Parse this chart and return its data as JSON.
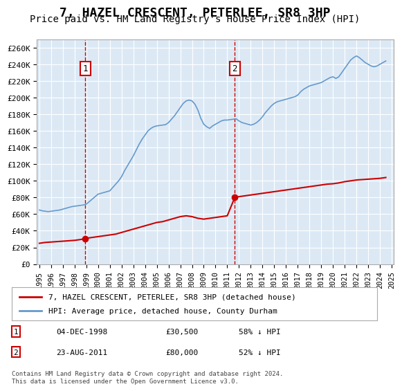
{
  "title": "7, HAZEL CRESCENT, PETERLEE, SR8 3HP",
  "subtitle": "Price paid vs. HM Land Registry's House Price Index (HPI)",
  "title_fontsize": 13,
  "subtitle_fontsize": 10,
  "ylabel": "",
  "xlabel": "",
  "ylim": [
    0,
    270000
  ],
  "yticks": [
    0,
    20000,
    40000,
    60000,
    80000,
    100000,
    120000,
    140000,
    160000,
    180000,
    200000,
    220000,
    240000,
    260000
  ],
  "ytick_labels": [
    "£0",
    "£20K",
    "£40K",
    "£60K",
    "£80K",
    "£100K",
    "£120K",
    "£140K",
    "£160K",
    "£180K",
    "£200K",
    "£220K",
    "£240K",
    "£260K"
  ],
  "bg_color": "#dce9f5",
  "plot_bg": "#dce9f5",
  "fig_bg": "#ffffff",
  "legend_label_red": "7, HAZEL CRESCENT, PETERLEE, SR8 3HP (detached house)",
  "legend_label_blue": "HPI: Average price, detached house, County Durham",
  "footnote": "Contains HM Land Registry data © Crown copyright and database right 2024.\nThis data is licensed under the Open Government Licence v3.0.",
  "annotation1_label": "1",
  "annotation1_date": "04-DEC-1998",
  "annotation1_price": "£30,500",
  "annotation1_hpi": "58% ↓ HPI",
  "annotation1_year": 1998.92,
  "annotation1_value": 30500,
  "annotation2_label": "2",
  "annotation2_date": "23-AUG-2011",
  "annotation2_price": "£80,000",
  "annotation2_hpi": "52% ↓ HPI",
  "annotation2_year": 2011.64,
  "annotation2_value": 80000,
  "hpi_data_x": [
    1995.0,
    1995.25,
    1995.5,
    1995.75,
    1996.0,
    1996.25,
    1996.5,
    1996.75,
    1997.0,
    1997.25,
    1997.5,
    1997.75,
    1998.0,
    1998.25,
    1998.5,
    1998.75,
    1999.0,
    1999.25,
    1999.5,
    1999.75,
    2000.0,
    2000.25,
    2000.5,
    2000.75,
    2001.0,
    2001.25,
    2001.5,
    2001.75,
    2002.0,
    2002.25,
    2002.5,
    2002.75,
    2003.0,
    2003.25,
    2003.5,
    2003.75,
    2004.0,
    2004.25,
    2004.5,
    2004.75,
    2005.0,
    2005.25,
    2005.5,
    2005.75,
    2006.0,
    2006.25,
    2006.5,
    2006.75,
    2007.0,
    2007.25,
    2007.5,
    2007.75,
    2008.0,
    2008.25,
    2008.5,
    2008.75,
    2009.0,
    2009.25,
    2009.5,
    2009.75,
    2010.0,
    2010.25,
    2010.5,
    2010.75,
    2011.0,
    2011.25,
    2011.5,
    2011.75,
    2012.0,
    2012.25,
    2012.5,
    2012.75,
    2013.0,
    2013.25,
    2013.5,
    2013.75,
    2014.0,
    2014.25,
    2014.5,
    2014.75,
    2015.0,
    2015.25,
    2015.5,
    2015.75,
    2016.0,
    2016.25,
    2016.5,
    2016.75,
    2017.0,
    2017.25,
    2017.5,
    2017.75,
    2018.0,
    2018.25,
    2018.5,
    2018.75,
    2019.0,
    2019.25,
    2019.5,
    2019.75,
    2020.0,
    2020.25,
    2020.5,
    2020.75,
    2021.0,
    2021.25,
    2021.5,
    2021.75,
    2022.0,
    2022.25,
    2022.5,
    2022.75,
    2023.0,
    2023.25,
    2023.5,
    2023.75,
    2024.0,
    2024.25,
    2024.5
  ],
  "hpi_data_y": [
    65000,
    64000,
    63500,
    63000,
    63500,
    64000,
    64500,
    65000,
    66000,
    67000,
    68000,
    69000,
    69500,
    70000,
    70500,
    71000,
    72000,
    75000,
    78000,
    81000,
    84000,
    85000,
    86000,
    87000,
    88000,
    92000,
    96000,
    100000,
    105000,
    112000,
    118000,
    124000,
    130000,
    137000,
    144000,
    150000,
    155000,
    160000,
    163000,
    165000,
    166000,
    166500,
    167000,
    167500,
    170000,
    174000,
    178000,
    183000,
    188000,
    193000,
    196000,
    197000,
    196000,
    192000,
    185000,
    175000,
    168000,
    165000,
    163000,
    166000,
    168000,
    170000,
    172000,
    173000,
    173000,
    173500,
    174000,
    174500,
    172000,
    170000,
    169000,
    168000,
    167000,
    168000,
    170000,
    173000,
    177000,
    182000,
    186000,
    190000,
    193000,
    195000,
    196000,
    197000,
    198000,
    199000,
    200000,
    201000,
    203000,
    207000,
    210000,
    212000,
    214000,
    215000,
    216000,
    217000,
    218000,
    220000,
    222000,
    224000,
    225000,
    223000,
    225000,
    230000,
    235000,
    240000,
    245000,
    248000,
    250000,
    248000,
    245000,
    242000,
    240000,
    238000,
    237000,
    238000,
    240000,
    242000,
    244000
  ],
  "red_data_x": [
    1995.0,
    1995.5,
    1996.0,
    1996.5,
    1997.0,
    1997.5,
    1998.0,
    1998.5,
    1998.92,
    1999.0,
    1999.5,
    2000.0,
    2000.5,
    2001.0,
    2001.5,
    2002.0,
    2002.5,
    2003.0,
    2003.5,
    2004.0,
    2004.5,
    2005.0,
    2005.5,
    2006.0,
    2006.5,
    2007.0,
    2007.5,
    2008.0,
    2008.5,
    2009.0,
    2009.5,
    2010.0,
    2010.5,
    2011.0,
    2011.64,
    2012.0,
    2012.5,
    2013.0,
    2013.5,
    2014.0,
    2014.5,
    2015.0,
    2015.5,
    2016.0,
    2016.5,
    2017.0,
    2017.5,
    2018.0,
    2018.5,
    2019.0,
    2019.5,
    2020.0,
    2020.5,
    2021.0,
    2021.5,
    2022.0,
    2022.5,
    2023.0,
    2023.5,
    2024.0,
    2024.5
  ],
  "red_data_y": [
    25000,
    26000,
    26500,
    27000,
    27500,
    28000,
    28500,
    29500,
    30500,
    31000,
    32000,
    33000,
    34000,
    35000,
    36000,
    38000,
    40000,
    42000,
    44000,
    46000,
    48000,
    50000,
    51000,
    53000,
    55000,
    57000,
    58000,
    57000,
    55000,
    54000,
    55000,
    56000,
    57000,
    58000,
    80000,
    81000,
    82000,
    83000,
    84000,
    85000,
    86000,
    87000,
    88000,
    89000,
    90000,
    91000,
    92000,
    93000,
    94000,
    95000,
    96000,
    96500,
    97500,
    99000,
    100000,
    101000,
    101500,
    102000,
    102500,
    103000,
    104000
  ]
}
